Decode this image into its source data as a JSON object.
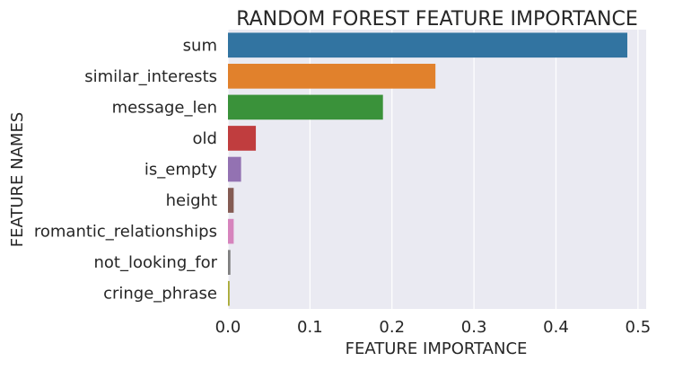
{
  "chart_data": {
    "type": "bar",
    "orientation": "horizontal",
    "title": "RANDOM FOREST FEATURE IMPORTANCE",
    "xlabel": "FEATURE IMPORTANCE",
    "ylabel": "FEATURE NAMES",
    "xlim": [
      0,
      0.51
    ],
    "xticks": [
      0.0,
      0.1,
      0.2,
      0.3,
      0.4,
      0.5
    ],
    "xtick_labels": [
      "0.0",
      "0.1",
      "0.2",
      "0.3",
      "0.4",
      "0.5"
    ],
    "grid": true,
    "categories": [
      "sum",
      "similar_interests",
      "message_len",
      "old",
      "is_empty",
      "height",
      "romantic_relationships",
      "not_looking_for",
      "cringe_phrase"
    ],
    "values": [
      0.487,
      0.253,
      0.189,
      0.034,
      0.016,
      0.007,
      0.007,
      0.003,
      0.002
    ],
    "colors": [
      "#3274a1",
      "#e1812c",
      "#3a923a",
      "#c03d3e",
      "#9372b2",
      "#845b53",
      "#d684bd",
      "#7f7f7f",
      "#a9aa35"
    ],
    "background": "#eaeaf2"
  }
}
